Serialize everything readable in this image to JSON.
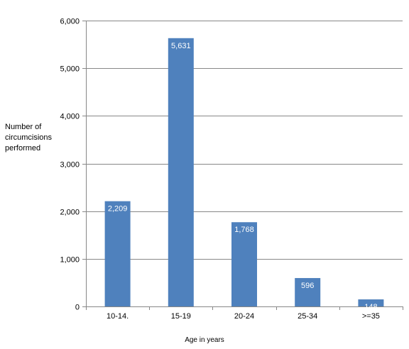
{
  "chart_data": {
    "type": "bar",
    "categories": [
      "10-14.",
      "15-19",
      "20-24",
      "25-34",
      ">=35"
    ],
    "values": [
      2209,
      5631,
      1768,
      596,
      148
    ],
    "data_labels": [
      "2,209",
      "5,631",
      "1,768",
      "596",
      "148"
    ],
    "ylabel": "Number of\ncircumcisions\nperformed",
    "xlabel": "Age in years",
    "ylim": [
      0,
      6000
    ],
    "yticks": [
      0,
      1000,
      2000,
      3000,
      4000,
      5000,
      6000
    ],
    "ytick_labels": [
      "0",
      "1,000",
      "2,000",
      "3,000",
      "4,000",
      "5,000",
      "6,000"
    ],
    "grid": true,
    "legend": false,
    "colors": {
      "bar": "#4F81BD",
      "grid": "#878787",
      "axis": "#878787",
      "label_inside": "#ffffff",
      "text": "#000000"
    }
  }
}
